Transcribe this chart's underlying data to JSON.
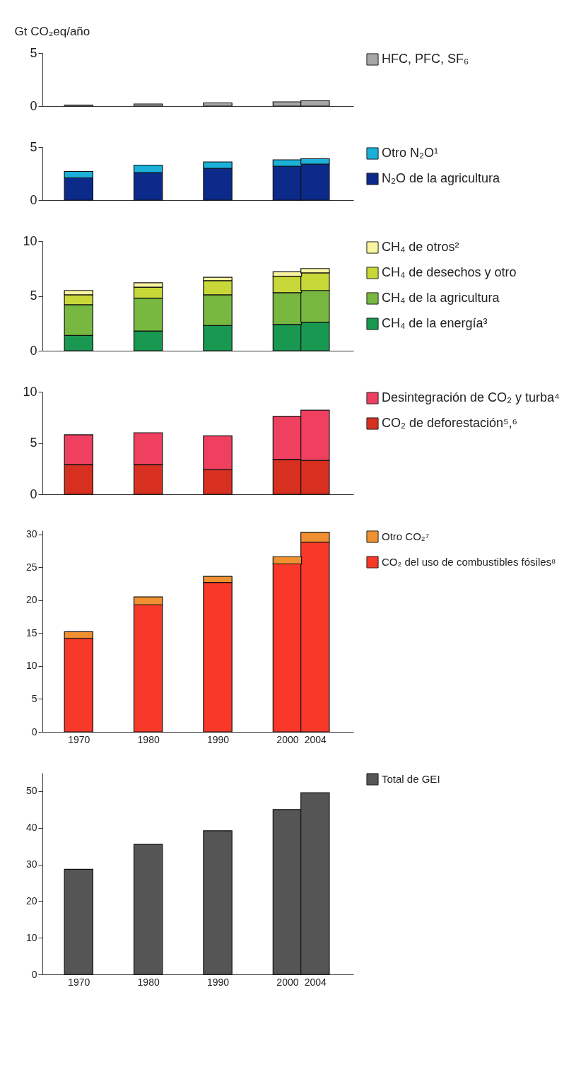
{
  "chart_data": [
    {
      "type": "bar",
      "ylabel": "Gt CO₂eq/año",
      "x": [
        1970,
        1980,
        1990,
        2000,
        2004
      ],
      "xlim": [
        1965.3,
        2009
      ],
      "ylim": [
        0,
        5
      ],
      "yticks": [
        0,
        5
      ],
      "tick_labels": "y",
      "legend": "right",
      "series": [
        {
          "name": "HFC, PFC, SF₆",
          "color": "#a6a6a6",
          "values": [
            0.1,
            0.2,
            0.3,
            0.4,
            0.5
          ]
        }
      ]
    },
    {
      "type": "bar",
      "x": [
        1970,
        1980,
        1990,
        2000,
        2004
      ],
      "xlim": [
        1965.3,
        2009
      ],
      "ylim": [
        0,
        5
      ],
      "yticks": [
        0,
        5
      ],
      "tick_labels": "y",
      "legend": "right",
      "stacked": true,
      "series": [
        {
          "name": "N₂O de la agricultura",
          "color": "#0c2a8a",
          "values": [
            2.1,
            2.6,
            3.0,
            3.2,
            3.4
          ]
        },
        {
          "name": "Otro N₂O¹",
          "color": "#1ab0d8",
          "values": [
            0.6,
            0.7,
            0.6,
            0.6,
            0.5
          ]
        }
      ]
    },
    {
      "type": "bar",
      "x": [
        1970,
        1980,
        1990,
        2000,
        2004
      ],
      "xlim": [
        1965.3,
        2009
      ],
      "ylim": [
        0,
        10
      ],
      "yticks": [
        0,
        5,
        10
      ],
      "tick_labels": "y",
      "legend": "right",
      "stacked": true,
      "series": [
        {
          "name": "CH₄ de la energía³",
          "color": "#189850",
          "values": [
            1.4,
            1.8,
            2.3,
            2.4,
            2.6
          ]
        },
        {
          "name": "CH₄ de la agricultura",
          "color": "#78b840",
          "values": [
            2.8,
            3.0,
            2.8,
            2.9,
            2.9
          ]
        },
        {
          "name": "CH₄ de desechos y otro",
          "color": "#c8d838",
          "values": [
            0.9,
            1.0,
            1.3,
            1.5,
            1.6
          ]
        },
        {
          "name": "CH₄ de otros²",
          "color": "#f8f4a0",
          "values": [
            0.4,
            0.4,
            0.3,
            0.4,
            0.4
          ]
        }
      ]
    },
    {
      "type": "bar",
      "x": [
        1970,
        1980,
        1990,
        2000,
        2004
      ],
      "xlim": [
        1965.3,
        2009
      ],
      "ylim": [
        0,
        10
      ],
      "yticks": [
        0,
        5,
        10
      ],
      "tick_labels": "y",
      "legend": "right",
      "stacked": true,
      "series": [
        {
          "name": "CO₂ de deforestación⁵,⁶",
          "color": "#d83020",
          "values": [
            2.9,
            2.9,
            2.4,
            3.4,
            3.3
          ]
        },
        {
          "name": "Desintegración de CO₂ y turba⁴",
          "color": "#f04060",
          "values": [
            2.9,
            3.1,
            3.3,
            4.2,
            4.9
          ]
        }
      ]
    },
    {
      "type": "bar",
      "x": [
        1970,
        1980,
        1990,
        2000,
        2004
      ],
      "xlim": [
        1965.3,
        2009
      ],
      "xticks": [
        1970,
        1980,
        1990,
        2000,
        2004
      ],
      "ylim": [
        0,
        30.6
      ],
      "yticks": [
        0,
        5,
        10,
        15,
        20,
        25,
        30
      ],
      "legend": "right",
      "stacked": true,
      "series": [
        {
          "name": "CO₂ del uso de combustibles fósiles⁸",
          "color": "#f83828",
          "values": [
            14.2,
            19.3,
            22.7,
            25.5,
            28.8
          ]
        },
        {
          "name": "Otro CO₂⁷",
          "color": "#f09030",
          "values": [
            1.0,
            1.2,
            0.9,
            1.1,
            1.5
          ]
        }
      ]
    },
    {
      "type": "bar",
      "x": [
        1970,
        1980,
        1990,
        2000,
        2004
      ],
      "xlim": [
        1965.3,
        2009
      ],
      "xticks": [
        1970,
        1980,
        1990,
        2000,
        2004
      ],
      "ylim": [
        0,
        55
      ],
      "yticks": [
        0,
        10,
        20,
        30,
        40,
        50
      ],
      "legend": "right",
      "series": [
        {
          "name": "Total de GEI",
          "color": "#555555",
          "values": [
            28.7,
            35.5,
            39.2,
            45.0,
            49.6
          ]
        }
      ]
    }
  ]
}
